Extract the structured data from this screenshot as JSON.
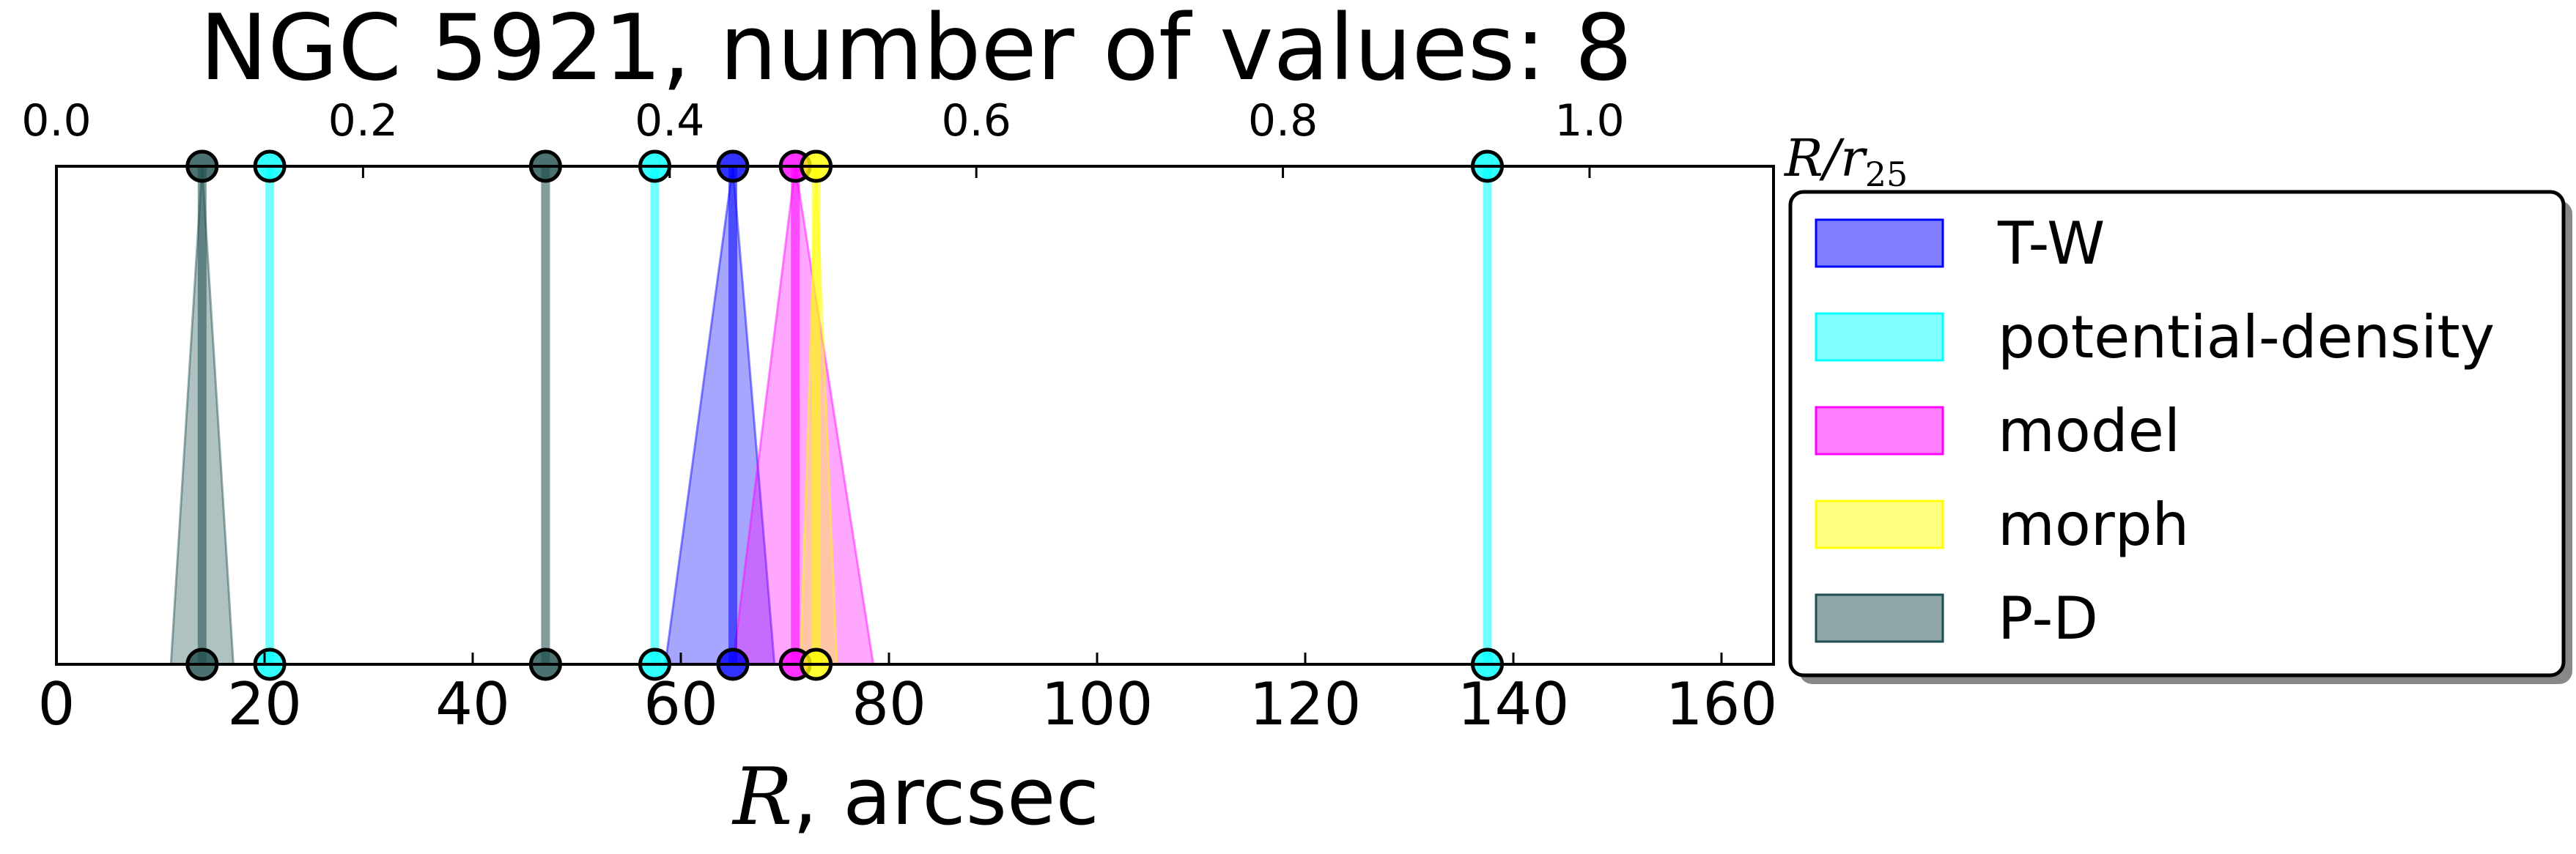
{
  "chart_data": {
    "type": "range_markers",
    "title": "NGC 5921, number of values: 8",
    "xlabel_italic": "R",
    "xlabel_rest": ", arcsec",
    "top_axis_label_main": "R/r",
    "top_axis_label_sub": "25",
    "xlim": [
      0,
      165
    ],
    "xticks": [
      "0",
      "20",
      "40",
      "60",
      "80",
      "100",
      "120",
      "140",
      "160"
    ],
    "top_xlim": [
      0,
      1.12
    ],
    "top_xticks": [
      "0.0",
      "0.2",
      "0.4",
      "0.6",
      "0.8",
      "1.0"
    ],
    "grid": false,
    "legend_position": "right",
    "series": [
      {
        "name": "T-W",
        "color": "#0000ff",
        "markers": [
          {
            "x": 65,
            "lo": 58.5,
            "hi": 69
          }
        ]
      },
      {
        "name": "potential-density",
        "color": "#00ffff",
        "markers": [
          {
            "x": 20.5
          },
          {
            "x": 57.5
          },
          {
            "x": 137.5
          }
        ]
      },
      {
        "name": "model",
        "color": "#ff00ff",
        "markers": [
          {
            "x": 71,
            "lo": 65,
            "hi": 78.5
          }
        ]
      },
      {
        "name": "morph",
        "color": "#ffff00",
        "markers": [
          {
            "x": 73,
            "lo": 71.5,
            "hi": 75
          }
        ]
      },
      {
        "name": "P-D",
        "color": "#1e4d4d",
        "markers": [
          {
            "x": 14,
            "lo": 11,
            "hi": 17
          },
          {
            "x": 47
          }
        ]
      }
    ]
  }
}
